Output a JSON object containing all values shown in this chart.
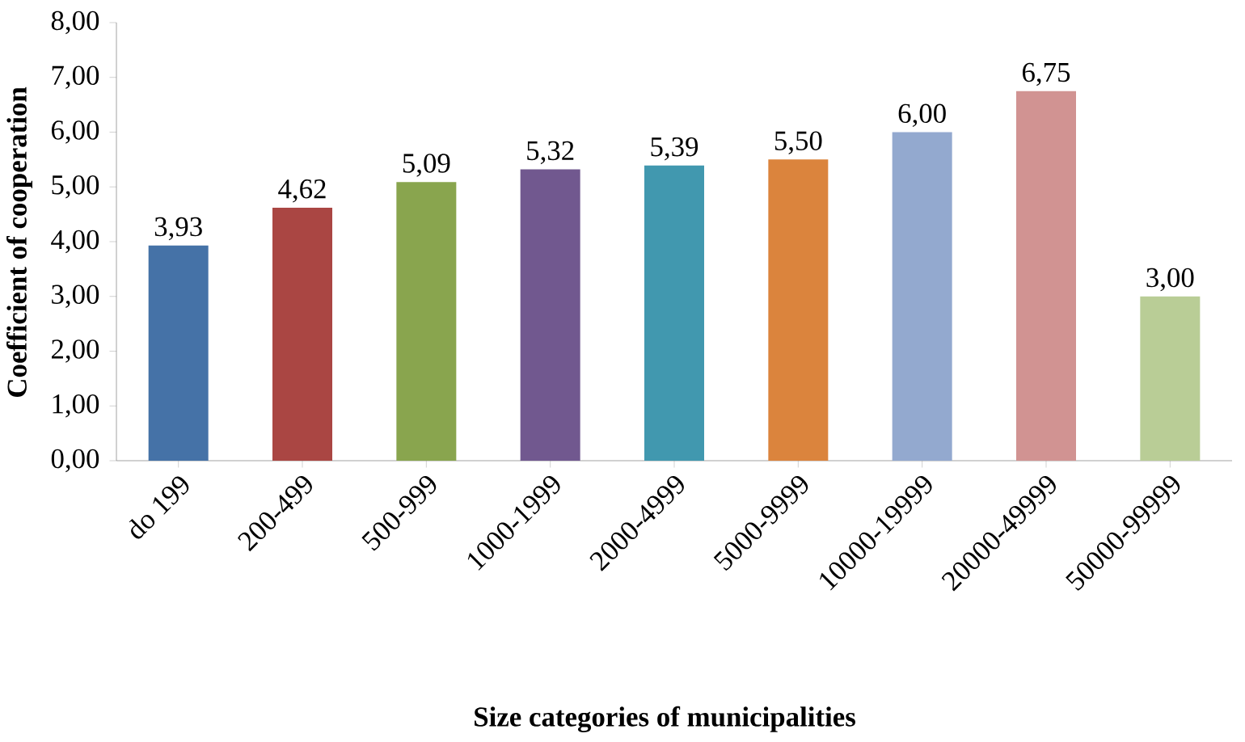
{
  "chart_data": {
    "type": "bar",
    "xlabel": "Size categories of municipalities",
    "ylabel": "Coefficient of cooperation",
    "categories": [
      "do 199",
      "200-499",
      "500-999",
      "1000-1999",
      "2000-4999",
      "5000-9999",
      "10000-19999",
      "20000-49999",
      "50000-99999"
    ],
    "values": [
      3.93,
      4.62,
      5.09,
      5.32,
      5.39,
      5.5,
      6.0,
      6.75,
      3.0
    ],
    "value_labels": [
      "3,93",
      "4,62",
      "5,09",
      "5,32",
      "5,39",
      "5,50",
      "6,00",
      "6,75",
      "3,00"
    ],
    "colors": [
      "#4572a7",
      "#aa4643",
      "#89a54e",
      "#71588f",
      "#4198af",
      "#db843d",
      "#93a9cf",
      "#d19392",
      "#b9cd96"
    ],
    "ylim": [
      0,
      8
    ],
    "yticks": [
      {
        "value": 0,
        "label": "0,00"
      },
      {
        "value": 1,
        "label": "1,00"
      },
      {
        "value": 2,
        "label": "2,00"
      },
      {
        "value": 3,
        "label": "3,00"
      },
      {
        "value": 4,
        "label": "4,00"
      },
      {
        "value": 5,
        "label": "5,00"
      },
      {
        "value": 6,
        "label": "6,00"
      },
      {
        "value": 7,
        "label": "7,00"
      },
      {
        "value": 8,
        "label": "8,00"
      }
    ],
    "grid": false
  }
}
